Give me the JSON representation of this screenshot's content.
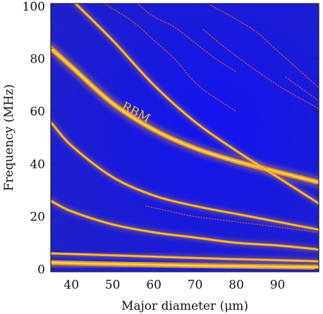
{
  "chart_data": {
    "type": "heatmap",
    "xlabel": "Major diameter (μm)",
    "ylabel": "Frequency (MHz)",
    "xlim": [
      35,
      100
    ],
    "ylim": [
      -1,
      101
    ],
    "x_ticks": [
      40,
      50,
      60,
      70,
      80,
      90
    ],
    "y_ticks": [
      0,
      20,
      40,
      60,
      80,
      100
    ],
    "grid": false,
    "colors": {
      "background": "#1a1ae8",
      "mode_core": "#ffd65a",
      "mode_glow": "#f0a020",
      "weak_mode": "#e2603a",
      "annotation": "#f3c23a"
    },
    "annotations": [
      {
        "text": "RBM",
        "x": 52,
        "y": 61
      }
    ],
    "series": [
      {
        "name": "RBM",
        "strength": "strong",
        "x": [
          35,
          40,
          50,
          60,
          70,
          80,
          90,
          100
        ],
        "y": [
          84,
          77,
          63,
          53,
          46,
          41,
          37,
          33
        ]
      },
      {
        "strength": "medium",
        "x": [
          35,
          40,
          50,
          60,
          70,
          80,
          90,
          100
        ],
        "y": [
          56,
          47,
          35,
          28,
          24,
          21,
          18,
          15
        ]
      },
      {
        "strength": "medium",
        "x": [
          35,
          40,
          50,
          60,
          70,
          80,
          90,
          100
        ],
        "y": [
          26,
          22,
          17,
          14,
          12,
          10,
          9,
          7.5
        ]
      },
      {
        "strength": "medium",
        "x": [
          35,
          45,
          55,
          65,
          75,
          85,
          100
        ],
        "y": [
          6,
          5.5,
          5,
          4.5,
          4,
          3.6,
          3
        ]
      },
      {
        "strength": "strong",
        "x": [
          35,
          45,
          55,
          65,
          75,
          85,
          100
        ],
        "y": [
          2.5,
          2.1,
          1.8,
          1.5,
          1.2,
          1,
          0.7
        ]
      },
      {
        "strength": "medium",
        "x": [
          41,
          50,
          60,
          70,
          80,
          90,
          100
        ],
        "y": [
          101,
          87,
          70,
          56,
          45,
          35,
          25
        ]
      },
      {
        "strength": "weak",
        "x": [
          48,
          55,
          60,
          65,
          70,
          75,
          80
        ],
        "y": [
          101,
          94,
          87,
          80,
          71,
          65,
          60
        ]
      },
      {
        "strength": "weak",
        "x": [
          56,
          60,
          65,
          70,
          75,
          80
        ],
        "y": [
          101,
          96,
          92,
          86,
          80,
          75
        ]
      },
      {
        "strength": "weak",
        "x": [
          73,
          80,
          85,
          90,
          95,
          100
        ],
        "y": [
          101,
          95,
          90,
          83,
          76,
          69
        ]
      },
      {
        "strength": "weak",
        "x": [
          72,
          80,
          90,
          100
        ],
        "y": [
          91,
          81,
          70,
          61
        ]
      },
      {
        "strength": "weak",
        "x": [
          92,
          100
        ],
        "y": [
          73,
          64
        ]
      },
      {
        "strength": "weak",
        "x": [
          58,
          64,
          70,
          80,
          90,
          100
        ],
        "y": [
          24,
          22,
          20,
          18,
          16,
          14
        ]
      }
    ]
  }
}
